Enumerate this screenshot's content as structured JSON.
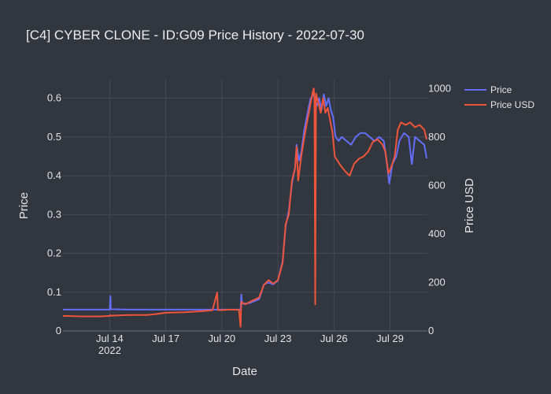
{
  "chart_data": {
    "type": "line",
    "title": "[C4] CYBER CLONE - ID:G09 Price History - 2022-07-30",
    "xlabel": "Date",
    "ylabel": "Price",
    "y2label": "Price USD",
    "x_range": [
      "2022-07-11T12:00",
      "2022-07-31T00:00"
    ],
    "y_range": [
      0,
      0.65
    ],
    "y2_range": [
      0,
      1040
    ],
    "x_ticks": [
      {
        "date": "2022-07-14T00:00",
        "label": "Jul 14",
        "sub": "2022"
      },
      {
        "date": "2022-07-17T00:00",
        "label": "Jul 17",
        "sub": ""
      },
      {
        "date": "2022-07-20T00:00",
        "label": "Jul 20",
        "sub": ""
      },
      {
        "date": "2022-07-23T00:00",
        "label": "Jul 23",
        "sub": ""
      },
      {
        "date": "2022-07-26T00:00",
        "label": "Jul 26",
        "sub": ""
      },
      {
        "date": "2022-07-29T00:00",
        "label": "Jul 29",
        "sub": ""
      }
    ],
    "y_ticks": [
      0,
      0.1,
      0.2,
      0.3,
      0.4,
      0.5,
      0.6
    ],
    "y_tick_labels": [
      "0",
      "0.1",
      "0.2",
      "0.3",
      "0.4",
      "0.5",
      "0.6"
    ],
    "y2_ticks": [
      0,
      200,
      400,
      600,
      800,
      1000
    ],
    "y2_tick_labels": [
      "0",
      "200",
      "400",
      "600",
      "800",
      "1000"
    ],
    "grid": true,
    "legend_position": "top-right",
    "series": [
      {
        "name": "Price",
        "axis": "y",
        "color": "#636efa",
        "points": [
          [
            "2022-07-11T12:00",
            0.055
          ],
          [
            "2022-07-13T00:00",
            0.055
          ],
          [
            "2022-07-14T00:00",
            0.055
          ],
          [
            "2022-07-14T01:00",
            0.09
          ],
          [
            "2022-07-14T01:30",
            0.056
          ],
          [
            "2022-07-15T00:00",
            0.055
          ],
          [
            "2022-07-17T00:00",
            0.055
          ],
          [
            "2022-07-18T00:00",
            0.055
          ],
          [
            "2022-07-20T00:00",
            0.055
          ],
          [
            "2022-07-20T12:00",
            0.055
          ],
          [
            "2022-07-21T00:00",
            0.055
          ],
          [
            "2022-07-21T01:00",
            0.094
          ],
          [
            "2022-07-21T02:00",
            0.07
          ],
          [
            "2022-07-21T12:00",
            0.072
          ],
          [
            "2022-07-22T00:00",
            0.082
          ],
          [
            "2022-07-22T06:00",
            0.12
          ],
          [
            "2022-07-22T12:00",
            0.125
          ],
          [
            "2022-07-22T18:00",
            0.12
          ],
          [
            "2022-07-23T00:00",
            0.13
          ],
          [
            "2022-07-23T06:00",
            0.18
          ],
          [
            "2022-07-23T10:00",
            0.27
          ],
          [
            "2022-07-23T14:00",
            0.31
          ],
          [
            "2022-07-23T18:00",
            0.38
          ],
          [
            "2022-07-23T22:00",
            0.42
          ],
          [
            "2022-07-24T00:00",
            0.48
          ],
          [
            "2022-07-24T03:00",
            0.44
          ],
          [
            "2022-07-24T06:00",
            0.46
          ],
          [
            "2022-07-24T10:00",
            0.52
          ],
          [
            "2022-07-24T14:00",
            0.56
          ],
          [
            "2022-07-24T18:00",
            0.6
          ],
          [
            "2022-07-24T22:00",
            0.61
          ],
          [
            "2022-07-25T02:00",
            0.58
          ],
          [
            "2022-07-25T05:00",
            0.6
          ],
          [
            "2022-07-25T08:00",
            0.57
          ],
          [
            "2022-07-25T11:00",
            0.61
          ],
          [
            "2022-07-25T14:00",
            0.58
          ],
          [
            "2022-07-25T17:00",
            0.6
          ],
          [
            "2022-07-25T20:00",
            0.57
          ],
          [
            "2022-07-25T23:00",
            0.55
          ],
          [
            "2022-07-26T02:00",
            0.5
          ],
          [
            "2022-07-26T06:00",
            0.49
          ],
          [
            "2022-07-26T10:00",
            0.5
          ],
          [
            "2022-07-26T16:00",
            0.49
          ],
          [
            "2022-07-26T22:00",
            0.48
          ],
          [
            "2022-07-27T04:00",
            0.5
          ],
          [
            "2022-07-27T10:00",
            0.51
          ],
          [
            "2022-07-27T16:00",
            0.51
          ],
          [
            "2022-07-27T22:00",
            0.5
          ],
          [
            "2022-07-28T04:00",
            0.49
          ],
          [
            "2022-07-28T10:00",
            0.5
          ],
          [
            "2022-07-28T16:00",
            0.49
          ],
          [
            "2022-07-28T20:00",
            0.43
          ],
          [
            "2022-07-28T23:00",
            0.38
          ],
          [
            "2022-07-29T03:00",
            0.43
          ],
          [
            "2022-07-29T08:00",
            0.45
          ],
          [
            "2022-07-29T12:00",
            0.49
          ],
          [
            "2022-07-29T18:00",
            0.51
          ],
          [
            "2022-07-30T00:00",
            0.5
          ],
          [
            "2022-07-30T04:00",
            0.43
          ],
          [
            "2022-07-30T08:00",
            0.5
          ],
          [
            "2022-07-30T14:00",
            0.49
          ],
          [
            "2022-07-30T20:00",
            0.48
          ],
          [
            "2022-07-30T23:00",
            0.445
          ]
        ]
      },
      {
        "name": "Price USD",
        "axis": "y2",
        "color": "#ef553b",
        "points": [
          [
            "2022-07-11T12:00",
            62
          ],
          [
            "2022-07-12T12:00",
            60
          ],
          [
            "2022-07-13T12:00",
            60
          ],
          [
            "2022-07-14T00:00",
            62
          ],
          [
            "2022-07-14T01:00",
            65
          ],
          [
            "2022-07-14T01:30",
            63
          ],
          [
            "2022-07-15T00:00",
            66
          ],
          [
            "2022-07-16T00:00",
            66
          ],
          [
            "2022-07-16T12:00",
            70
          ],
          [
            "2022-07-17T00:00",
            75
          ],
          [
            "2022-07-18T00:00",
            77
          ],
          [
            "2022-07-19T00:00",
            82
          ],
          [
            "2022-07-19T12:00",
            85
          ],
          [
            "2022-07-19T18:00",
            158
          ],
          [
            "2022-07-19T19:00",
            86
          ],
          [
            "2022-07-20T00:00",
            86
          ],
          [
            "2022-07-20T12:00",
            88
          ],
          [
            "2022-07-20T22:00",
            87
          ],
          [
            "2022-07-21T00:00",
            17
          ],
          [
            "2022-07-21T01:00",
            120
          ],
          [
            "2022-07-21T06:00",
            110
          ],
          [
            "2022-07-21T12:00",
            120
          ],
          [
            "2022-07-22T00:00",
            138
          ],
          [
            "2022-07-22T06:00",
            190
          ],
          [
            "2022-07-22T12:00",
            210
          ],
          [
            "2022-07-22T18:00",
            195
          ],
          [
            "2022-07-23T00:00",
            210
          ],
          [
            "2022-07-23T06:00",
            280
          ],
          [
            "2022-07-23T10:00",
            440
          ],
          [
            "2022-07-23T14:00",
            480
          ],
          [
            "2022-07-23T18:00",
            620
          ],
          [
            "2022-07-23T22:00",
            670
          ],
          [
            "2022-07-24T00:00",
            760
          ],
          [
            "2022-07-24T02:00",
            620
          ],
          [
            "2022-07-24T06:00",
            720
          ],
          [
            "2022-07-24T10:00",
            800
          ],
          [
            "2022-07-24T14:00",
            870
          ],
          [
            "2022-07-24T18:00",
            940
          ],
          [
            "2022-07-24T21:00",
            990
          ],
          [
            "2022-07-24T22:00",
            1000
          ],
          [
            "2022-07-24T23:00",
            950
          ],
          [
            "2022-07-25T00:00",
            110
          ],
          [
            "2022-07-25T01:00",
            980
          ],
          [
            "2022-07-25T04:00",
            940
          ],
          [
            "2022-07-25T07:00",
            900
          ],
          [
            "2022-07-25T10:00",
            960
          ],
          [
            "2022-07-25T13:00",
            900
          ],
          [
            "2022-07-25T16:00",
            920
          ],
          [
            "2022-07-25T19:00",
            870
          ],
          [
            "2022-07-25T22:00",
            820
          ],
          [
            "2022-07-26T01:00",
            720
          ],
          [
            "2022-07-26T05:00",
            700
          ],
          [
            "2022-07-26T09:00",
            680
          ],
          [
            "2022-07-26T14:00",
            660
          ],
          [
            "2022-07-26T20:00",
            640
          ],
          [
            "2022-07-27T02:00",
            690
          ],
          [
            "2022-07-27T08:00",
            710
          ],
          [
            "2022-07-27T14:00",
            720
          ],
          [
            "2022-07-27T20:00",
            740
          ],
          [
            "2022-07-28T02:00",
            780
          ],
          [
            "2022-07-28T08:00",
            790
          ],
          [
            "2022-07-28T14:00",
            770
          ],
          [
            "2022-07-28T18:00",
            740
          ],
          [
            "2022-07-28T22:00",
            650
          ],
          [
            "2022-07-29T02:00",
            680
          ],
          [
            "2022-07-29T06:00",
            720
          ],
          [
            "2022-07-29T10:00",
            830
          ],
          [
            "2022-07-29T14:00",
            860
          ],
          [
            "2022-07-29T20:00",
            850
          ],
          [
            "2022-07-30T02:00",
            860
          ],
          [
            "2022-07-30T08:00",
            840
          ],
          [
            "2022-07-30T14:00",
            850
          ],
          [
            "2022-07-30T20:00",
            830
          ],
          [
            "2022-07-30T23:00",
            790
          ]
        ]
      }
    ]
  }
}
